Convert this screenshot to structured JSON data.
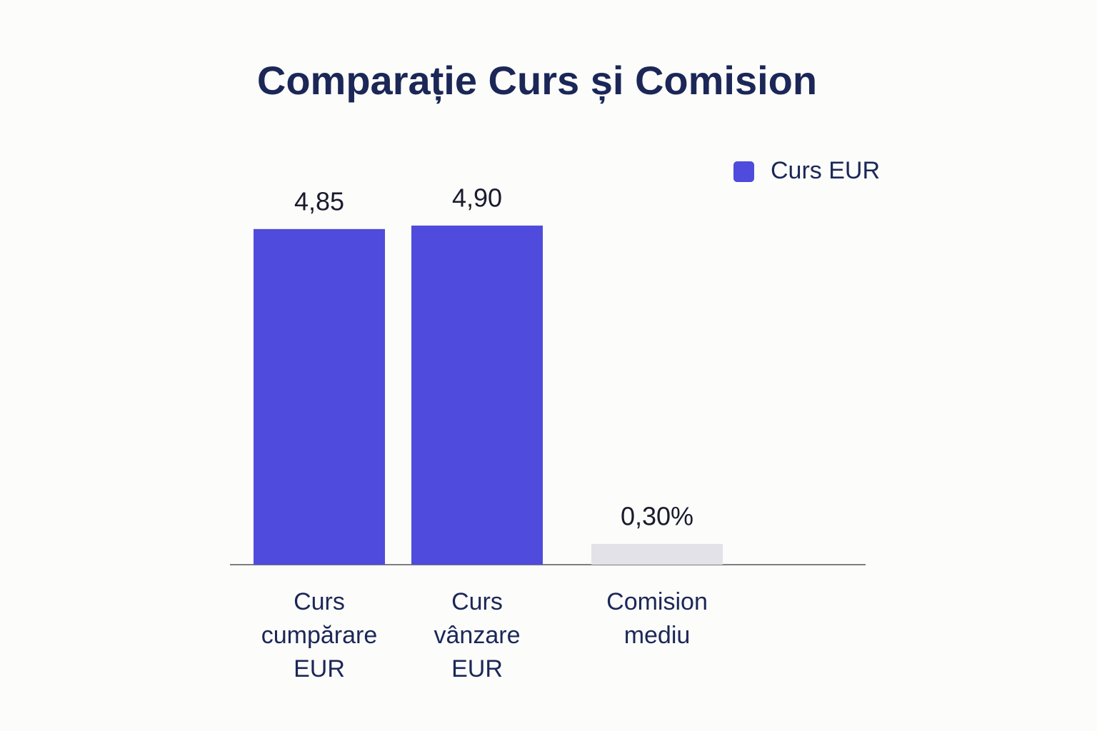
{
  "chart_data": {
    "type": "bar",
    "title": "Comparație Curs și Comision",
    "categories": [
      "Curs cumpărare EUR",
      "Curs vânzare EUR",
      "Comision mediu"
    ],
    "series": [
      {
        "name": "Curs EUR",
        "color": "#4f4bdc",
        "colors": [
          "#4f4bdc",
          "#4f4bdc",
          "#e2e2e8"
        ],
        "values": [
          4.85,
          4.9,
          0.3
        ],
        "value_labels": [
          "4,85",
          "4,90",
          "0,30%"
        ]
      }
    ],
    "legend": "top-right"
  }
}
